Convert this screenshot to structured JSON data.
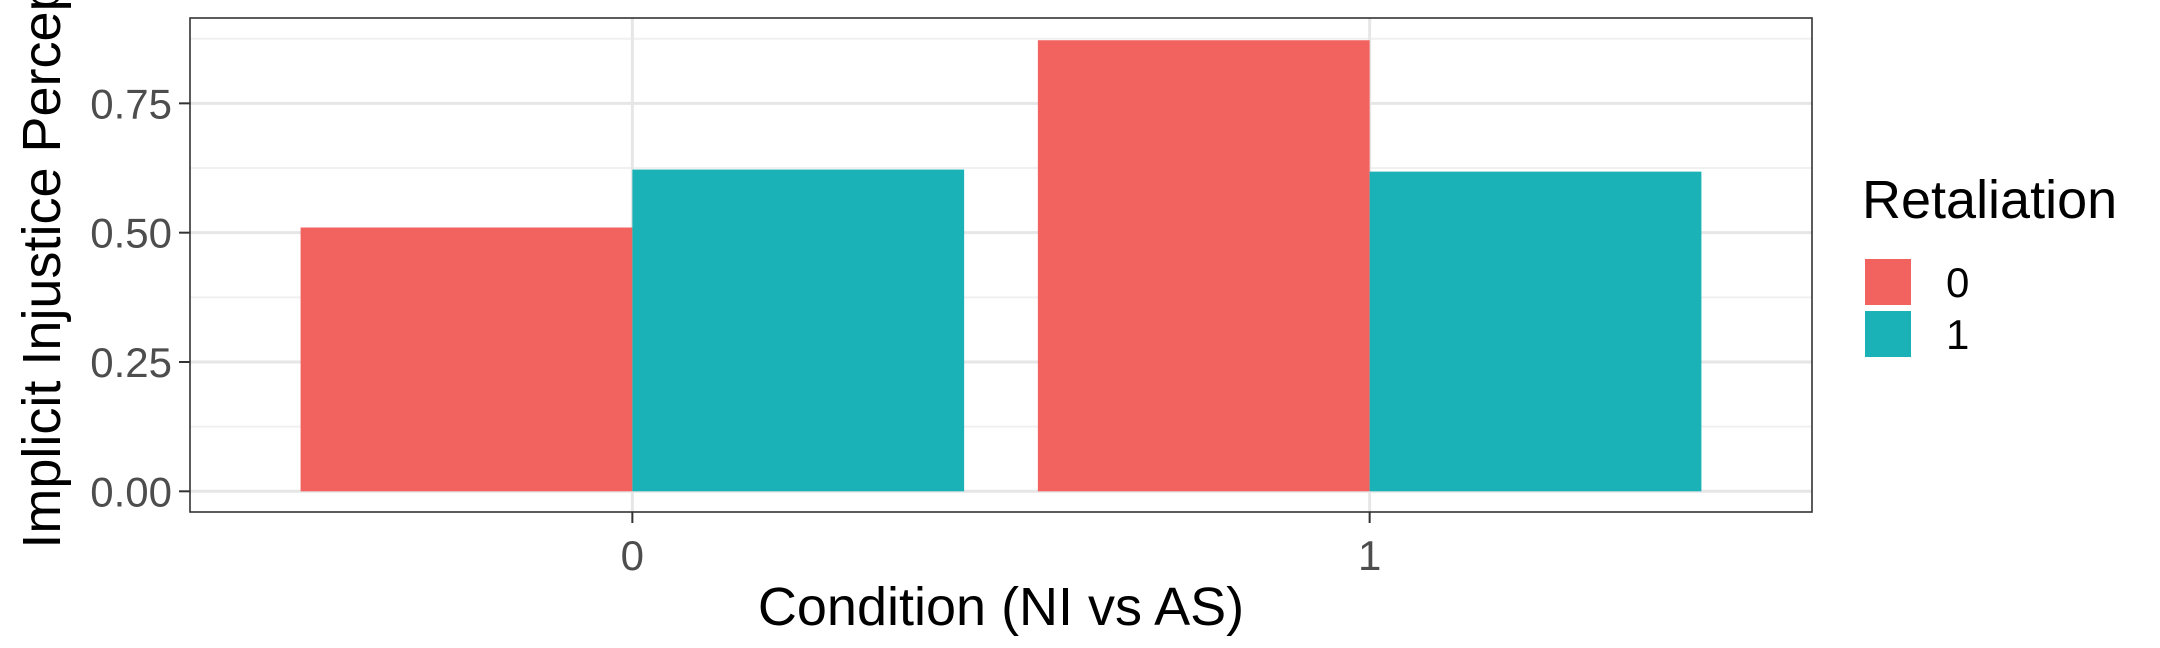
{
  "chart_data": {
    "type": "bar",
    "xlabel": "Condition (NI vs AS)",
    "ylabel": "Implicit Injustice Percep",
    "categories": [
      "0",
      "1"
    ],
    "series": [
      {
        "name": "0",
        "values": [
          0.51,
          0.872
        ],
        "color": "#F2625F"
      },
      {
        "name": "1",
        "values": [
          0.622,
          0.618
        ],
        "color": "#1AB2B6"
      }
    ],
    "ylim": [
      -0.04,
      0.915
    ],
    "yticks": [
      0.0,
      0.25,
      0.5,
      0.75
    ],
    "ytick_labels": [
      "0.00",
      "0.25",
      "0.50",
      "0.75"
    ],
    "legend": {
      "title": "Retaliation",
      "position": "right"
    },
    "grid": true,
    "theme": "bw"
  }
}
